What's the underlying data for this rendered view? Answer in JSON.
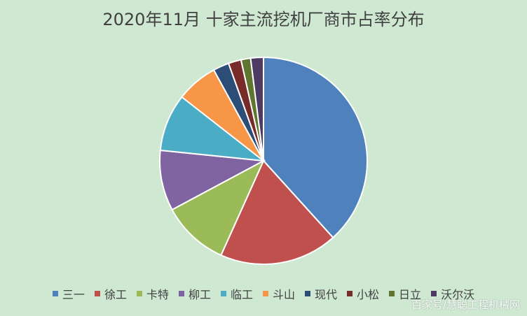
{
  "chart_data": {
    "type": "pie",
    "title": "2020年11月 十家主流挖机厂商市占率分布",
    "categories": [
      "三一",
      "徐工",
      "卡特",
      "柳工",
      "临工",
      "斗山",
      "现代",
      "小松",
      "日立",
      "沃尔沃"
    ],
    "values": [
      38.5,
      18.5,
      10.5,
      9.5,
      9.0,
      6.5,
      2.5,
      2.0,
      1.5,
      2.0
    ],
    "unit": "%",
    "colors": [
      "#4f81bd",
      "#c0504d",
      "#9bbb59",
      "#8064a2",
      "#4bacc6",
      "#f79646",
      "#2c4d75",
      "#772c2a",
      "#5f7530",
      "#4d3b62"
    ],
    "start_angle_deg": 0,
    "direction": "clockwise",
    "legend_position": "bottom"
  },
  "background_color": "#cfe8d2",
  "watermark": "百家号/慧聪工程机械网"
}
